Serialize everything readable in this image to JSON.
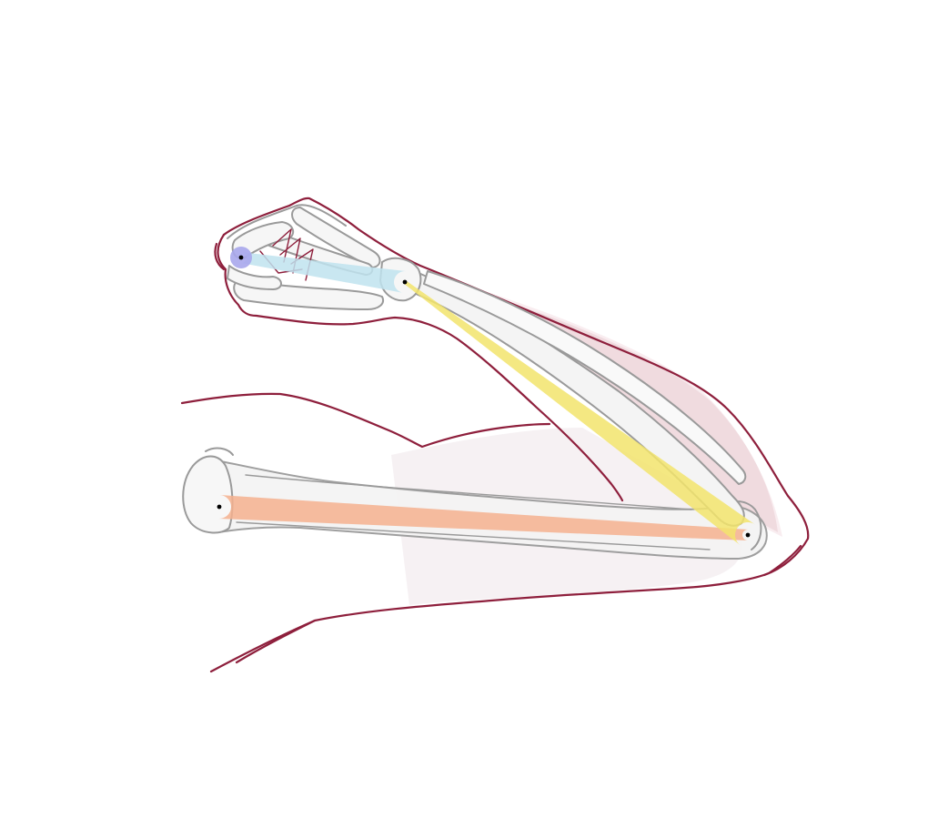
{
  "colors": {
    "background": "#ffffff",
    "skin_outline": "#8e1f3c",
    "skin_shading": "#c98a94",
    "bone_outline": "#9a9a9a",
    "bone_fill": "#f4f4f4",
    "upper_arm_segment": "#f4b08e",
    "forearm_segment": "#f2e46c",
    "hand_segment": "#bfe3ef",
    "fingertip_joint": "#a9a7ec",
    "joint_dot": "#000000"
  },
  "joints": [
    {
      "name": "shoulder"
    },
    {
      "name": "elbow"
    },
    {
      "name": "wrist"
    },
    {
      "name": "fingertip"
    }
  ],
  "segments": [
    {
      "name": "upper-arm",
      "color_key": "upper_arm_segment"
    },
    {
      "name": "forearm",
      "color_key": "forearm_segment"
    },
    {
      "name": "hand",
      "color_key": "hand_segment"
    }
  ]
}
